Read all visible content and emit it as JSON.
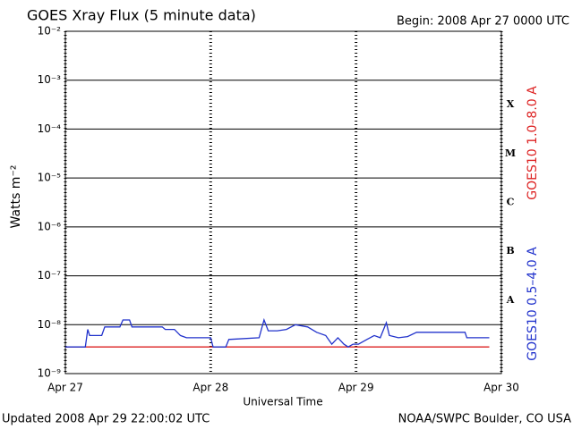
{
  "chart_data": {
    "type": "line",
    "title": "GOES Xray Flux (5 minute data)",
    "subtitle": "Begin:  2008 Apr 27 0000 UTC",
    "x_label": "Universal Time",
    "y_label": "Watts m⁻²",
    "y_scale": "log",
    "grid": true,
    "legend": "right",
    "ylim": [
      1e-09,
      0.01
    ],
    "yticks": [
      {
        "value": 1e-09,
        "label": "10⁻⁹"
      },
      {
        "value": 1e-08,
        "label": "10⁻⁸"
      },
      {
        "value": 1e-07,
        "label": "10⁻⁷"
      },
      {
        "value": 1e-06,
        "label": "10⁻⁶"
      },
      {
        "value": 1e-05,
        "label": "10⁻⁵"
      },
      {
        "value": 0.0001,
        "label": "10⁻⁴"
      },
      {
        "value": 0.001,
        "label": "10⁻³"
      },
      {
        "value": 0.01,
        "label": "10⁻²"
      }
    ],
    "xlim": [
      0,
      72
    ],
    "xticks": [
      {
        "value": 0,
        "label": "Apr 27"
      },
      {
        "value": 24,
        "label": "Apr 28"
      },
      {
        "value": 48,
        "label": "Apr 29"
      },
      {
        "value": 72,
        "label": "Apr 30"
      }
    ],
    "flare_classes": [
      "X",
      "M",
      "C",
      "B",
      "A"
    ],
    "series": [
      {
        "name": "GOES10 1.0–8.0 A",
        "color": "#dd2222",
        "x": [
          0,
          70
        ],
        "values": [
          3.5e-09,
          3.5e-09
        ]
      },
      {
        "name": "GOES10 0.5–4.0 A",
        "color": "#2233cc",
        "x": [
          0,
          3.3,
          3.7,
          4,
          6,
          6.5,
          7,
          9,
          9.5,
          10.6,
          11,
          16,
          16.5,
          18,
          19,
          20,
          24,
          24.4,
          26.5,
          27,
          32,
          32.8,
          33.5,
          35,
          36.5,
          38,
          40,
          41.5,
          43,
          44,
          45,
          46,
          46.7,
          47.5,
          48.4,
          49.8,
          51,
          52,
          53,
          53.5,
          55,
          56.5,
          58,
          66,
          66.3,
          70
        ],
        "values": [
          3.5e-09,
          3.5e-09,
          8e-09,
          6e-09,
          6e-09,
          9e-09,
          9e-09,
          9e-09,
          1.25e-08,
          1.25e-08,
          9e-09,
          9e-09,
          8e-09,
          8e-09,
          6e-09,
          5.4e-09,
          5.4e-09,
          3.5e-09,
          3.5e-09,
          5e-09,
          5.4e-09,
          1.25e-08,
          7.5e-09,
          7.5e-09,
          8e-09,
          1e-08,
          9e-09,
          7e-09,
          6e-09,
          4e-09,
          5.4e-09,
          4e-09,
          3.5e-09,
          4e-09,
          4e-09,
          5e-09,
          6e-09,
          5.4e-09,
          1.1e-08,
          6e-09,
          5.4e-09,
          5.7e-09,
          7e-09,
          7e-09,
          5.4e-09,
          5.4e-09
        ]
      }
    ],
    "footer_left": "Updated 2008 Apr 29 22:00:02 UTC",
    "footer_right": "NOAA/SWPC Boulder, CO USA"
  }
}
